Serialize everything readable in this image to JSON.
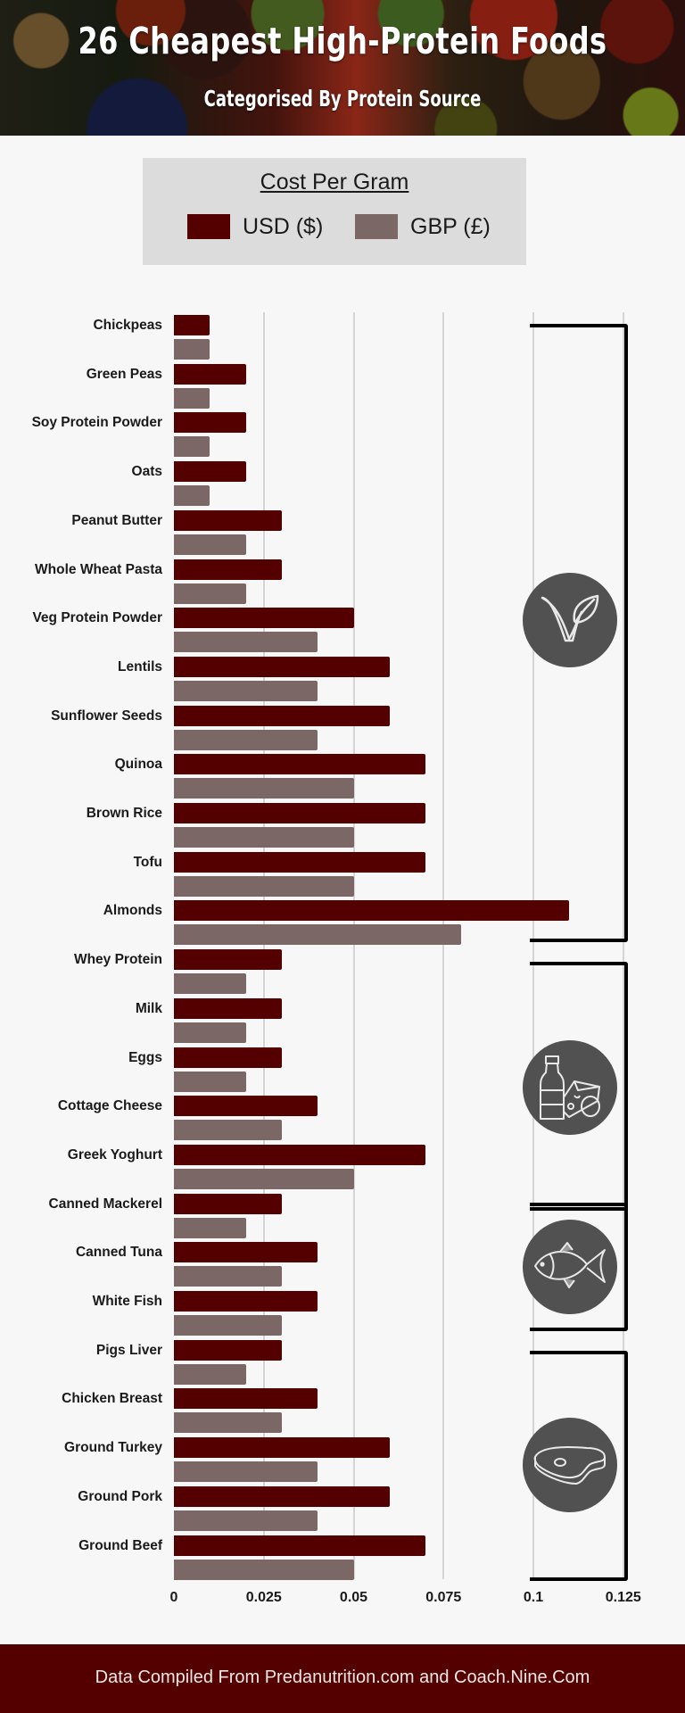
{
  "header": {
    "title": "26 Cheapest High-Protein Foods",
    "subtitle": "Categorised By  Protein Source"
  },
  "legend": {
    "title": "Cost Per Gram",
    "items": [
      {
        "label": "USD ($)",
        "color": "#540000"
      },
      {
        "label": "GBP (£)",
        "color": "#7b6765"
      }
    ]
  },
  "categories": [
    {
      "name": "plant",
      "icon": "vegan-leaf-icon",
      "rows": [
        0,
        12
      ]
    },
    {
      "name": "dairy",
      "icon": "dairy-bottle-cheese-icon",
      "rows": [
        13,
        17
      ]
    },
    {
      "name": "fish",
      "icon": "fish-icon",
      "rows": [
        18,
        20
      ]
    },
    {
      "name": "meat",
      "icon": "steak-icon",
      "rows": [
        21,
        25
      ]
    }
  ],
  "chart_data": {
    "type": "bar",
    "orientation": "horizontal",
    "title": "Cost Per Gram",
    "xlabel": "",
    "ylabel": "",
    "xlim": [
      0,
      0.125
    ],
    "xticks": [
      "0",
      "0.025",
      "0.05",
      "0.075",
      "0.1",
      "0.125"
    ],
    "grid": true,
    "legend_position": "top",
    "categories": [
      "Chickpeas",
      "Green Peas",
      "Soy Protein Powder",
      "Oats",
      "Peanut Butter",
      "Whole Wheat Pasta",
      "Veg Protein Powder",
      "Lentils",
      "Sunflower Seeds",
      "Quinoa",
      "Brown Rice",
      "Tofu",
      "Almonds",
      "Whey Protein",
      "Milk",
      "Eggs",
      "Cottage Cheese",
      "Greek Yoghurt",
      "Canned Mackerel",
      "Canned Tuna",
      "White Fish",
      "Pigs Liver",
      "Chicken Breast",
      "Ground Turkey",
      "Ground Pork",
      "Ground Beef"
    ],
    "series": [
      {
        "name": "USD ($)",
        "values": [
          0.01,
          0.02,
          0.02,
          0.02,
          0.03,
          0.03,
          0.05,
          0.06,
          0.06,
          0.07,
          0.07,
          0.07,
          0.11,
          0.03,
          0.03,
          0.03,
          0.04,
          0.07,
          0.03,
          0.04,
          0.04,
          0.03,
          0.04,
          0.06,
          0.06,
          0.07
        ]
      },
      {
        "name": "GBP (£)",
        "values": [
          0.01,
          0.01,
          0.01,
          0.01,
          0.02,
          0.02,
          0.04,
          0.04,
          0.04,
          0.05,
          0.05,
          0.05,
          0.08,
          0.02,
          0.02,
          0.02,
          0.03,
          0.05,
          0.02,
          0.03,
          0.03,
          0.02,
          0.03,
          0.04,
          0.04,
          0.05
        ]
      }
    ]
  },
  "footer": {
    "text": "Data Compiled From  Predanutrition.com and Coach.Nine.Com"
  }
}
